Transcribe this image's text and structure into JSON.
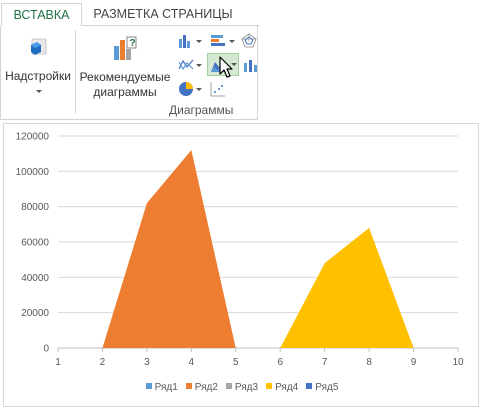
{
  "ribbon": {
    "tabs": [
      {
        "label": "ВСТАВКА",
        "active": true
      },
      {
        "label": "РАЗМЕТКА СТРАНИЦЫ",
        "active": false
      }
    ],
    "addins_label": "Надстройки",
    "recommended_line1": "Рекомендуемые",
    "recommended_line2": "диаграммы",
    "group_label": "Диаграммы",
    "icons": [
      "addins-icon",
      "recommended-charts-icon",
      "column-chart-icon",
      "bar-chart-icon",
      "radar-chart-icon",
      "line-chart-icon",
      "area-chart-icon",
      "combo-chart-icon",
      "pie-chart-icon",
      "scatter-chart-icon",
      "mouse-cursor-icon"
    ],
    "accent": "#217346"
  },
  "chart_data": {
    "type": "area",
    "x": [
      1,
      2,
      3,
      4,
      5,
      6,
      7,
      8,
      9,
      10
    ],
    "xlim": [
      1,
      10
    ],
    "ylim": [
      0,
      120000
    ],
    "yticks": [
      0,
      20000,
      40000,
      60000,
      80000,
      100000,
      120000
    ],
    "xticks": [
      1,
      2,
      3,
      4,
      5,
      6,
      7,
      8,
      9,
      10
    ],
    "grid": true,
    "legend_position": "bottom",
    "series": [
      {
        "name": "Ряд1",
        "color": "#5b9bd5",
        "values": [
          0,
          0,
          0,
          0,
          0,
          0,
          0,
          0,
          0,
          0
        ]
      },
      {
        "name": "Ряд2",
        "color": "#ed7d31",
        "values": [
          0,
          0,
          82000,
          112000,
          0,
          0,
          0,
          0,
          0,
          0
        ]
      },
      {
        "name": "Ряд3",
        "color": "#a5a5a5",
        "values": [
          0,
          0,
          0,
          0,
          0,
          0,
          0,
          0,
          0,
          0
        ]
      },
      {
        "name": "Ряд4",
        "color": "#ffc000",
        "values": [
          0,
          0,
          0,
          0,
          0,
          0,
          48000,
          68000,
          0,
          0
        ]
      },
      {
        "name": "Ряд5",
        "color": "#4472c4",
        "values": [
          0,
          0,
          0,
          0,
          0,
          0,
          0,
          0,
          0,
          0
        ]
      }
    ]
  }
}
